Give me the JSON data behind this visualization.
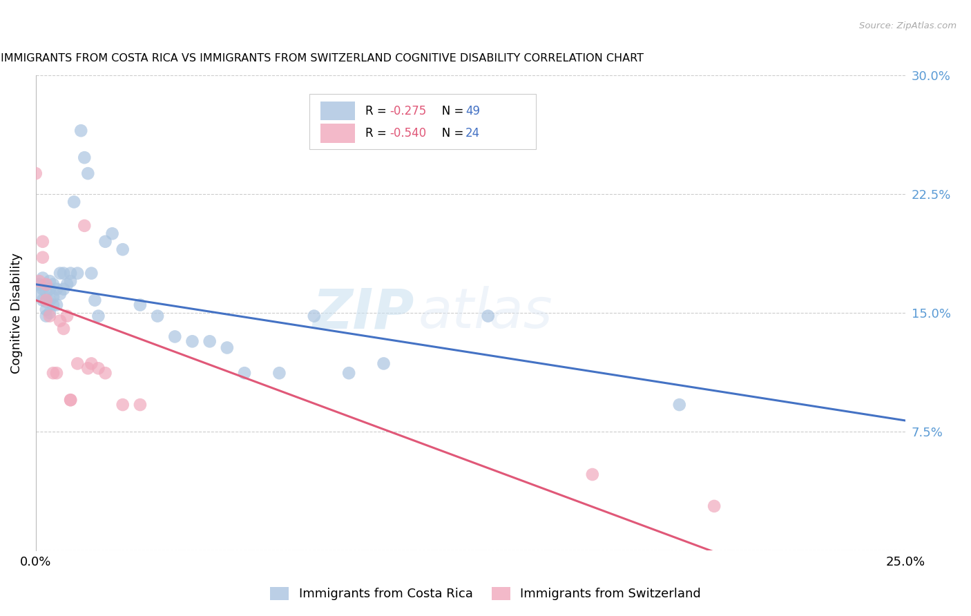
{
  "title": "IMMIGRANTS FROM COSTA RICA VS IMMIGRANTS FROM SWITZERLAND COGNITIVE DISABILITY CORRELATION CHART",
  "source": "Source: ZipAtlas.com",
  "ylabel": "Cognitive Disability",
  "x_min": 0.0,
  "x_max": 0.25,
  "y_min": 0.0,
  "y_max": 0.3,
  "x_ticks": [
    0.0,
    0.05,
    0.1,
    0.15,
    0.2,
    0.25
  ],
  "x_tick_labels": [
    "0.0%",
    "",
    "",
    "",
    "",
    "25.0%"
  ],
  "y_ticks": [
    0.0,
    0.075,
    0.15,
    0.225,
    0.3
  ],
  "y_tick_labels": [
    "",
    "7.5%",
    "15.0%",
    "22.5%",
    "30.0%"
  ],
  "legend_label_costa_rica": "Immigrants from Costa Rica",
  "legend_label_switzerland": "Immigrants from Switzerland",
  "legend_r1": "R = ",
  "legend_r1_val": "-0.275",
  "legend_n1": "   N = ",
  "legend_n1_val": "49",
  "legend_r2": "R = ",
  "legend_r2_val": "-0.540",
  "legend_n2": "   N = ",
  "legend_n2_val": "24",
  "costa_rica_color": "#aac4e0",
  "switzerland_color": "#f0a8bc",
  "trendline_costa_rica_color": "#4472c4",
  "trendline_switzerland_color": "#e05878",
  "watermark_zip": "ZIP",
  "watermark_atlas": "atlas",
  "watermark_color": "#d8eaf8",
  "costa_rica_x": [
    0.001,
    0.001,
    0.002,
    0.002,
    0.002,
    0.003,
    0.003,
    0.003,
    0.003,
    0.004,
    0.004,
    0.004,
    0.004,
    0.005,
    0.005,
    0.005,
    0.006,
    0.006,
    0.007,
    0.007,
    0.008,
    0.008,
    0.009,
    0.01,
    0.01,
    0.011,
    0.012,
    0.013,
    0.014,
    0.015,
    0.016,
    0.017,
    0.018,
    0.02,
    0.022,
    0.025,
    0.03,
    0.035,
    0.04,
    0.045,
    0.05,
    0.055,
    0.06,
    0.07,
    0.08,
    0.09,
    0.1,
    0.13,
    0.185
  ],
  "costa_rica_y": [
    0.168,
    0.162,
    0.165,
    0.158,
    0.172,
    0.163,
    0.157,
    0.152,
    0.148,
    0.17,
    0.165,
    0.158,
    0.15,
    0.168,
    0.16,
    0.155,
    0.165,
    0.155,
    0.175,
    0.162,
    0.175,
    0.165,
    0.168,
    0.175,
    0.17,
    0.22,
    0.175,
    0.265,
    0.248,
    0.238,
    0.175,
    0.158,
    0.148,
    0.195,
    0.2,
    0.19,
    0.155,
    0.148,
    0.135,
    0.132,
    0.132,
    0.128,
    0.112,
    0.112,
    0.148,
    0.112,
    0.118,
    0.148,
    0.092
  ],
  "switzerland_x": [
    0.0,
    0.001,
    0.002,
    0.002,
    0.003,
    0.003,
    0.004,
    0.005,
    0.006,
    0.007,
    0.008,
    0.009,
    0.01,
    0.01,
    0.012,
    0.014,
    0.015,
    0.016,
    0.018,
    0.02,
    0.025,
    0.03,
    0.16,
    0.195
  ],
  "switzerland_y": [
    0.238,
    0.17,
    0.195,
    0.185,
    0.168,
    0.158,
    0.148,
    0.112,
    0.112,
    0.145,
    0.14,
    0.148,
    0.095,
    0.095,
    0.118,
    0.205,
    0.115,
    0.118,
    0.115,
    0.112,
    0.092,
    0.092,
    0.048,
    0.028
  ],
  "trendline_cr_x0": 0.0,
  "trendline_cr_x1": 0.25,
  "trendline_cr_y0": 0.168,
  "trendline_cr_y1": 0.082,
  "trendline_sw_x0": 0.0,
  "trendline_sw_x1": 0.2,
  "trendline_sw_y0": 0.158,
  "trendline_sw_y1": -0.005
}
